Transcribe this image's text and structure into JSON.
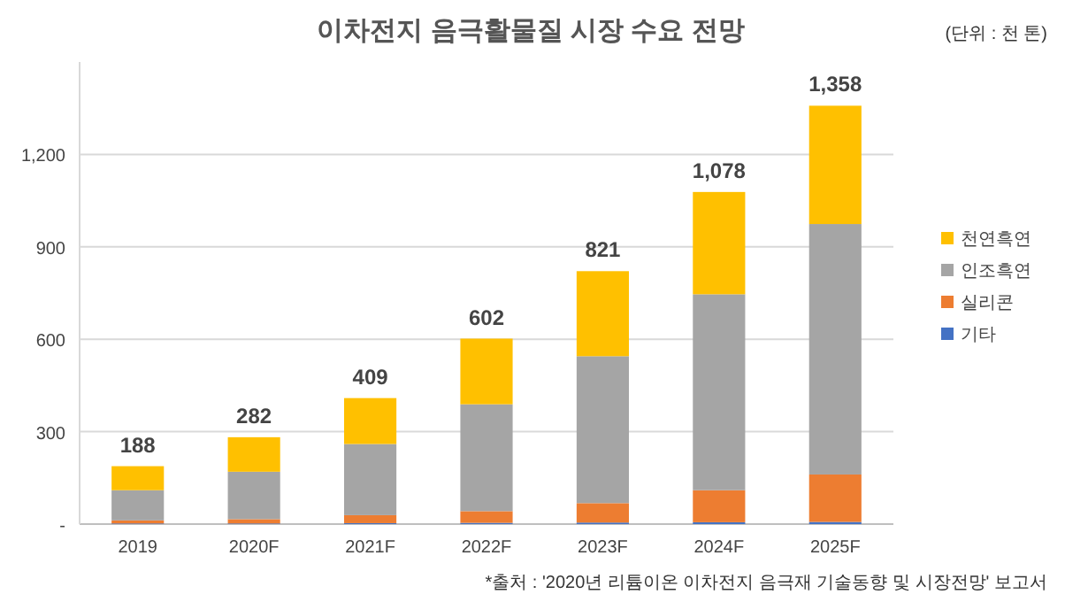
{
  "chart_data": {
    "type": "bar",
    "stacked": true,
    "title": "이차전지 음극활물질 시장 수요 전망",
    "annotations": [
      "(단위 : 천 톤)",
      "*출처 : '2020년 리튬이온 이차전지 음극재 기술동향 및 시장전망' 보고서"
    ],
    "categories": [
      "2019",
      "2020F",
      "2021F",
      "2022F",
      "2023F",
      "2024F",
      "2025F"
    ],
    "series": [
      {
        "name": "기타",
        "color": "#4472c4",
        "values": [
          2,
          2,
          3,
          4,
          5,
          6,
          7
        ]
      },
      {
        "name": "실리콘",
        "color": "#ed7d31",
        "values": [
          10,
          14,
          26,
          38,
          63,
          104,
          154
        ]
      },
      {
        "name": "인조흑연",
        "color": "#a5a5a5",
        "values": [
          98,
          154,
          231,
          347,
          477,
          636,
          813
        ]
      },
      {
        "name": "천연흑연",
        "color": "#ffc000",
        "values": [
          78,
          112,
          149,
          213,
          276,
          332,
          384
        ]
      }
    ],
    "totals": [
      "188",
      "282",
      "409",
      "602",
      "821",
      "1,078",
      "1,358"
    ],
    "ylim": [
      0,
      1500
    ],
    "yticks": [
      {
        "value": 0,
        "label": "-"
      },
      {
        "value": 300,
        "label": "300"
      },
      {
        "value": 600,
        "label": "600"
      },
      {
        "value": 900,
        "label": "900"
      },
      {
        "value": 1200,
        "label": "1,200"
      }
    ],
    "grid": "y",
    "legend": "right"
  }
}
